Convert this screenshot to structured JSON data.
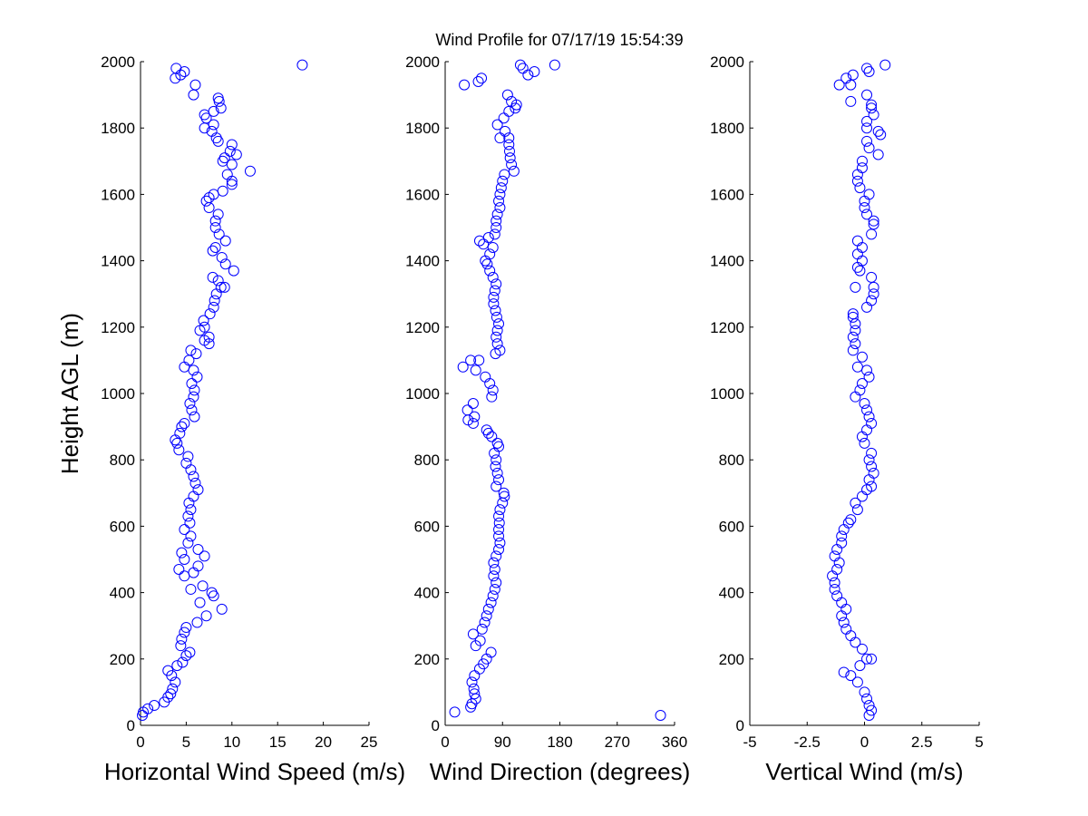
{
  "title": "Wind Profile for  07/17/19 15:54:39",
  "colors": {
    "marker": "#0000ff",
    "axis": "#000000",
    "background": "#ffffff"
  },
  "chart_data": [
    {
      "type": "scatter",
      "xlabel": "Horizontal Wind Speed (m/s)",
      "ylabel": "Height AGL (m)",
      "xlim": [
        0,
        25
      ],
      "ylim": [
        0,
        2000
      ],
      "xticks": [
        "0",
        "5",
        "10",
        "15",
        "20",
        "25"
      ],
      "yticks": [
        "0",
        "200",
        "400",
        "600",
        "800",
        "1000",
        "1200",
        "1400",
        "1600",
        "1800",
        "2000"
      ],
      "grid": false,
      "marker": "open-circle",
      "points": [
        [
          0.2,
          30
        ],
        [
          0.3,
          40
        ],
        [
          0.8,
          50
        ],
        [
          1.5,
          60
        ],
        [
          2.6,
          70
        ],
        [
          3.0,
          85
        ],
        [
          3.3,
          95
        ],
        [
          3.5,
          110
        ],
        [
          3.8,
          130
        ],
        [
          3.4,
          150
        ],
        [
          3.0,
          165
        ],
        [
          4.0,
          180
        ],
        [
          4.6,
          190
        ],
        [
          5.0,
          210
        ],
        [
          5.4,
          220
        ],
        [
          4.4,
          240
        ],
        [
          4.5,
          260
        ],
        [
          4.8,
          280
        ],
        [
          5.0,
          295
        ],
        [
          6.2,
          310
        ],
        [
          7.2,
          330
        ],
        [
          8.9,
          350
        ],
        [
          6.5,
          370
        ],
        [
          8.0,
          390
        ],
        [
          7.8,
          400
        ],
        [
          5.5,
          410
        ],
        [
          6.8,
          420
        ],
        [
          4.8,
          450
        ],
        [
          5.8,
          460
        ],
        [
          4.2,
          470
        ],
        [
          6.3,
          480
        ],
        [
          4.8,
          500
        ],
        [
          7.0,
          510
        ],
        [
          4.5,
          520
        ],
        [
          6.3,
          530
        ],
        [
          5.2,
          550
        ],
        [
          5.5,
          570
        ],
        [
          4.8,
          590
        ],
        [
          5.4,
          610
        ],
        [
          5.2,
          630
        ],
        [
          5.5,
          650
        ],
        [
          5.3,
          670
        ],
        [
          5.8,
          690
        ],
        [
          6.3,
          710
        ],
        [
          6.0,
          730
        ],
        [
          5.8,
          750
        ],
        [
          5.5,
          770
        ],
        [
          5.0,
          790
        ],
        [
          5.2,
          810
        ],
        [
          4.2,
          830
        ],
        [
          4.0,
          850
        ],
        [
          3.8,
          860
        ],
        [
          4.3,
          880
        ],
        [
          4.5,
          900
        ],
        [
          4.8,
          910
        ],
        [
          5.9,
          930
        ],
        [
          5.6,
          950
        ],
        [
          5.4,
          970
        ],
        [
          5.8,
          990
        ],
        [
          5.9,
          1010
        ],
        [
          5.6,
          1030
        ],
        [
          6.2,
          1050
        ],
        [
          5.8,
          1070
        ],
        [
          4.8,
          1080
        ],
        [
          5.3,
          1100
        ],
        [
          6.1,
          1120
        ],
        [
          5.5,
          1130
        ],
        [
          7.5,
          1150
        ],
        [
          7.0,
          1160
        ],
        [
          7.5,
          1170
        ],
        [
          6.5,
          1190
        ],
        [
          7.0,
          1200
        ],
        [
          6.9,
          1220
        ],
        [
          7.6,
          1240
        ],
        [
          8.0,
          1260
        ],
        [
          8.1,
          1280
        ],
        [
          8.3,
          1300
        ],
        [
          8.8,
          1320
        ],
        [
          9.2,
          1320
        ],
        [
          8.5,
          1340
        ],
        [
          7.9,
          1350
        ],
        [
          10.2,
          1370
        ],
        [
          9.3,
          1390
        ],
        [
          8.9,
          1410
        ],
        [
          7.9,
          1430
        ],
        [
          8.2,
          1440
        ],
        [
          9.3,
          1460
        ],
        [
          8.6,
          1480
        ],
        [
          8.2,
          1500
        ],
        [
          8.2,
          1520
        ],
        [
          8.5,
          1540
        ],
        [
          7.5,
          1560
        ],
        [
          7.2,
          1580
        ],
        [
          7.5,
          1590
        ],
        [
          8.0,
          1600
        ],
        [
          9.0,
          1610
        ],
        [
          10.0,
          1630
        ],
        [
          10.0,
          1640
        ],
        [
          9.5,
          1660
        ],
        [
          12.0,
          1670
        ],
        [
          10.0,
          1690
        ],
        [
          9.0,
          1700
        ],
        [
          9.2,
          1710
        ],
        [
          10.5,
          1720
        ],
        [
          9.8,
          1730
        ],
        [
          10.0,
          1750
        ],
        [
          8.5,
          1760
        ],
        [
          8.3,
          1770
        ],
        [
          7.8,
          1790
        ],
        [
          7.0,
          1800
        ],
        [
          8.0,
          1810
        ],
        [
          7.2,
          1830
        ],
        [
          7.0,
          1840
        ],
        [
          8.0,
          1850
        ],
        [
          8.8,
          1860
        ],
        [
          8.6,
          1880
        ],
        [
          8.5,
          1890
        ],
        [
          5.8,
          1900
        ],
        [
          6.0,
          1930
        ],
        [
          3.8,
          1950
        ],
        [
          4.4,
          1960
        ],
        [
          4.8,
          1970
        ],
        [
          3.9,
          1980
        ],
        [
          17.7,
          1990
        ]
      ]
    },
    {
      "type": "scatter",
      "xlabel": "Wind Direction (degrees)",
      "ylabel": "",
      "xlim": [
        0,
        360
      ],
      "ylim": [
        0,
        2000
      ],
      "xticks": [
        "0",
        "90",
        "180",
        "270",
        "360"
      ],
      "yticks": [
        "0",
        "200",
        "400",
        "600",
        "800",
        "1000",
        "1200",
        "1400",
        "1600",
        "1800",
        "2000"
      ],
      "grid": false,
      "marker": "open-circle",
      "points": [
        [
          338,
          30
        ],
        [
          15,
          40
        ],
        [
          40,
          55
        ],
        [
          42,
          65
        ],
        [
          48,
          80
        ],
        [
          46,
          95
        ],
        [
          45,
          110
        ],
        [
          42,
          130
        ],
        [
          46,
          150
        ],
        [
          54,
          170
        ],
        [
          60,
          185
        ],
        [
          65,
          200
        ],
        [
          72,
          220
        ],
        [
          48,
          240
        ],
        [
          55,
          255
        ],
        [
          44,
          275
        ],
        [
          58,
          290
        ],
        [
          62,
          310
        ],
        [
          65,
          330
        ],
        [
          68,
          350
        ],
        [
          72,
          370
        ],
        [
          75,
          390
        ],
        [
          78,
          410
        ],
        [
          80,
          430
        ],
        [
          76,
          450
        ],
        [
          78,
          470
        ],
        [
          76,
          490
        ],
        [
          80,
          510
        ],
        [
          84,
          530
        ],
        [
          86,
          550
        ],
        [
          84,
          570
        ],
        [
          84,
          590
        ],
        [
          85,
          610
        ],
        [
          84,
          630
        ],
        [
          86,
          650
        ],
        [
          90,
          670
        ],
        [
          93,
          690
        ],
        [
          92,
          700
        ],
        [
          80,
          720
        ],
        [
          84,
          740
        ],
        [
          82,
          760
        ],
        [
          79,
          780
        ],
        [
          80,
          800
        ],
        [
          77,
          820
        ],
        [
          84,
          840
        ],
        [
          82,
          850
        ],
        [
          73,
          870
        ],
        [
          68,
          880
        ],
        [
          65,
          890
        ],
        [
          44,
          910
        ],
        [
          36,
          920
        ],
        [
          46,
          930
        ],
        [
          35,
          950
        ],
        [
          44,
          970
        ],
        [
          73,
          990
        ],
        [
          75,
          1010
        ],
        [
          70,
          1030
        ],
        [
          63,
          1050
        ],
        [
          48,
          1070
        ],
        [
          28,
          1080
        ],
        [
          53,
          1100
        ],
        [
          40,
          1100
        ],
        [
          79,
          1120
        ],
        [
          86,
          1130
        ],
        [
          82,
          1150
        ],
        [
          80,
          1170
        ],
        [
          82,
          1190
        ],
        [
          84,
          1210
        ],
        [
          81,
          1230
        ],
        [
          79,
          1250
        ],
        [
          76,
          1270
        ],
        [
          76,
          1290
        ],
        [
          78,
          1310
        ],
        [
          80,
          1330
        ],
        [
          75,
          1350
        ],
        [
          70,
          1370
        ],
        [
          66,
          1390
        ],
        [
          63,
          1400
        ],
        [
          70,
          1420
        ],
        [
          75,
          1440
        ],
        [
          60,
          1450
        ],
        [
          54,
          1460
        ],
        [
          68,
          1470
        ],
        [
          78,
          1480
        ],
        [
          80,
          1500
        ],
        [
          80,
          1520
        ],
        [
          82,
          1540
        ],
        [
          86,
          1560
        ],
        [
          84,
          1580
        ],
        [
          86,
          1600
        ],
        [
          88,
          1620
        ],
        [
          90,
          1640
        ],
        [
          93,
          1660
        ],
        [
          108,
          1670
        ],
        [
          104,
          1690
        ],
        [
          102,
          1710
        ],
        [
          101,
          1730
        ],
        [
          100,
          1750
        ],
        [
          100,
          1770
        ],
        [
          86,
          1770
        ],
        [
          94,
          1790
        ],
        [
          82,
          1810
        ],
        [
          92,
          1830
        ],
        [
          100,
          1850
        ],
        [
          110,
          1860
        ],
        [
          112,
          1870
        ],
        [
          104,
          1880
        ],
        [
          98,
          1900
        ],
        [
          30,
          1930
        ],
        [
          52,
          1940
        ],
        [
          57,
          1950
        ],
        [
          130,
          1960
        ],
        [
          140,
          1970
        ],
        [
          122,
          1980
        ],
        [
          118,
          1990
        ],
        [
          172,
          1990
        ]
      ]
    },
    {
      "type": "scatter",
      "xlabel": "Vertical Wind (m/s)",
      "ylabel": "",
      "xlim": [
        -5,
        5
      ],
      "ylim": [
        0,
        2000
      ],
      "xticks": [
        "-5",
        "-2.5",
        "0",
        "2.5",
        "5"
      ],
      "yticks": [
        "0",
        "200",
        "400",
        "600",
        "800",
        "1000",
        "1200",
        "1400",
        "1600",
        "1800",
        "2000"
      ],
      "grid": false,
      "marker": "open-circle",
      "points": [
        [
          0.2,
          30
        ],
        [
          0.3,
          45
        ],
        [
          0.2,
          60
        ],
        [
          0.1,
          80
        ],
        [
          0.0,
          100
        ],
        [
          -0.3,
          130
        ],
        [
          -0.6,
          150
        ],
        [
          -0.9,
          160
        ],
        [
          -0.2,
          180
        ],
        [
          0.1,
          200
        ],
        [
          0.3,
          200
        ],
        [
          -0.1,
          230
        ],
        [
          -0.4,
          250
        ],
        [
          -0.6,
          270
        ],
        [
          -0.8,
          290
        ],
        [
          -0.9,
          310
        ],
        [
          -1.0,
          330
        ],
        [
          -0.8,
          350
        ],
        [
          -1.0,
          370
        ],
        [
          -1.2,
          390
        ],
        [
          -1.3,
          410
        ],
        [
          -1.3,
          430
        ],
        [
          -1.4,
          450
        ],
        [
          -1.2,
          470
        ],
        [
          -1.1,
          490
        ],
        [
          -1.3,
          510
        ],
        [
          -1.2,
          530
        ],
        [
          -1.0,
          550
        ],
        [
          -1.0,
          570
        ],
        [
          -0.9,
          590
        ],
        [
          -0.7,
          610
        ],
        [
          -0.6,
          620
        ],
        [
          -0.3,
          650
        ],
        [
          -0.4,
          670
        ],
        [
          -0.1,
          690
        ],
        [
          0.1,
          710
        ],
        [
          0.3,
          720
        ],
        [
          0.2,
          740
        ],
        [
          0.4,
          760
        ],
        [
          0.3,
          780
        ],
        [
          0.2,
          800
        ],
        [
          0.3,
          820
        ],
        [
          0.0,
          850
        ],
        [
          -0.1,
          870
        ],
        [
          0.1,
          890
        ],
        [
          0.3,
          910
        ],
        [
          0.2,
          930
        ],
        [
          0.1,
          950
        ],
        [
          0.0,
          970
        ],
        [
          -0.4,
          990
        ],
        [
          -0.2,
          1010
        ],
        [
          -0.1,
          1030
        ],
        [
          0.2,
          1050
        ],
        [
          0.1,
          1070
        ],
        [
          -0.3,
          1080
        ],
        [
          -0.1,
          1110
        ],
        [
          -0.5,
          1130
        ],
        [
          -0.4,
          1150
        ],
        [
          -0.5,
          1170
        ],
        [
          -0.4,
          1190
        ],
        [
          -0.4,
          1210
        ],
        [
          -0.5,
          1230
        ],
        [
          -0.5,
          1240
        ],
        [
          0.1,
          1260
        ],
        [
          0.3,
          1280
        ],
        [
          0.4,
          1300
        ],
        [
          0.4,
          1320
        ],
        [
          -0.4,
          1320
        ],
        [
          0.3,
          1350
        ],
        [
          -0.2,
          1370
        ],
        [
          -0.3,
          1380
        ],
        [
          -0.1,
          1400
        ],
        [
          -0.3,
          1420
        ],
        [
          -0.1,
          1440
        ],
        [
          -0.3,
          1460
        ],
        [
          0.3,
          1480
        ],
        [
          0.4,
          1510
        ],
        [
          0.4,
          1520
        ],
        [
          0.1,
          1540
        ],
        [
          0.0,
          1560
        ],
        [
          0.0,
          1580
        ],
        [
          0.2,
          1600
        ],
        [
          -0.2,
          1620
        ],
        [
          -0.3,
          1640
        ],
        [
          -0.3,
          1660
        ],
        [
          -0.1,
          1680
        ],
        [
          -0.1,
          1700
        ],
        [
          0.6,
          1720
        ],
        [
          0.2,
          1740
        ],
        [
          0.1,
          1760
        ],
        [
          0.7,
          1780
        ],
        [
          0.6,
          1790
        ],
        [
          0.1,
          1800
        ],
        [
          0.1,
          1820
        ],
        [
          0.4,
          1840
        ],
        [
          0.3,
          1860
        ],
        [
          0.3,
          1870
        ],
        [
          -0.6,
          1880
        ],
        [
          0.1,
          1900
        ],
        [
          -0.6,
          1930
        ],
        [
          -1.1,
          1930
        ],
        [
          -0.8,
          1950
        ],
        [
          -0.5,
          1960
        ],
        [
          0.2,
          1970
        ],
        [
          0.1,
          1980
        ],
        [
          0.9,
          1990
        ]
      ]
    }
  ]
}
